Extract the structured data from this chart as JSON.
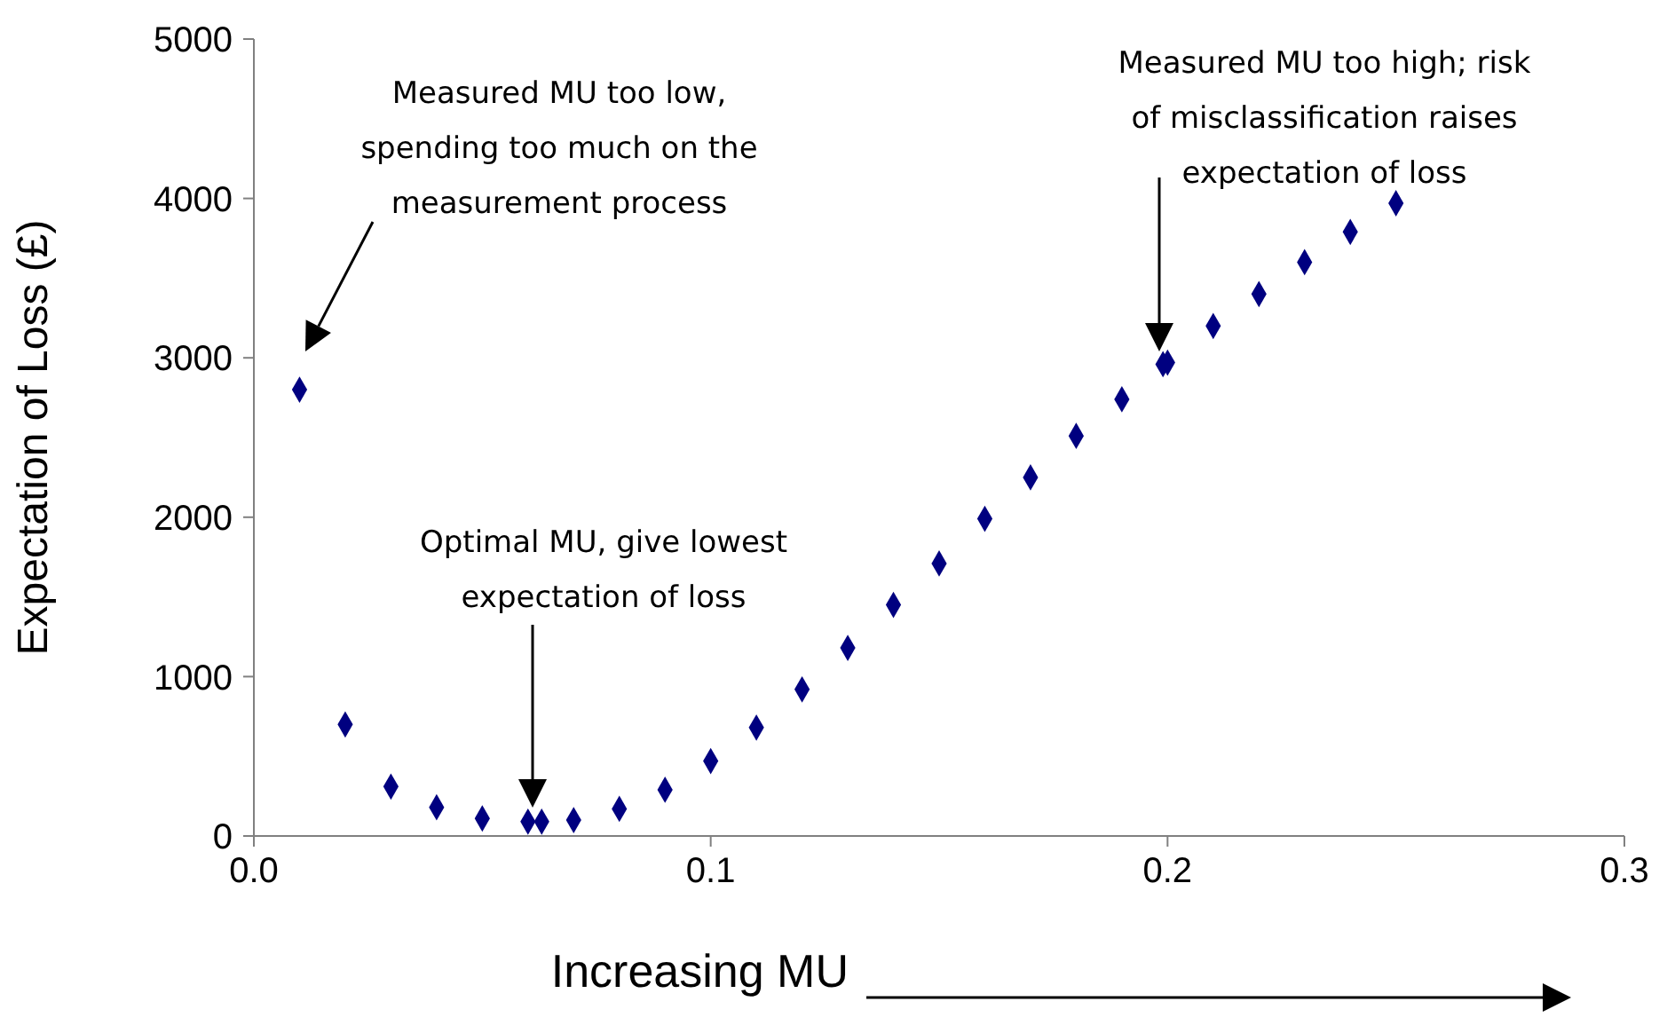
{
  "chart_data": {
    "type": "scatter",
    "xlabel": "Increasing MU",
    "ylabel": "Expectation of Loss (£)",
    "x": [
      0.01,
      0.02,
      0.03,
      0.04,
      0.05,
      0.06,
      0.063,
      0.07,
      0.08,
      0.09,
      0.1,
      0.11,
      0.12,
      0.13,
      0.14,
      0.15,
      0.16,
      0.17,
      0.18,
      0.19,
      0.199,
      0.2,
      0.21,
      0.22,
      0.23,
      0.24,
      0.25
    ],
    "series": [
      {
        "color": "#000080",
        "values": [
          2800,
          700,
          310,
          180,
          110,
          90,
          90,
          100,
          170,
          290,
          470,
          680,
          920,
          1180,
          1450,
          1710,
          1990,
          2250,
          2510,
          2740,
          2960,
          2970,
          3200,
          3400,
          3600,
          3790,
          3970
        ]
      }
    ],
    "xlim": [
      0,
      0.3
    ],
    "xticks": [
      {
        "value": 0,
        "label": "0.0"
      },
      0.1,
      0.2,
      0.3
    ],
    "ylim": [
      0,
      5000
    ],
    "yticks": [
      0,
      1000,
      2000,
      3000,
      4000,
      5000
    ],
    "marker": "diamond",
    "grid": false,
    "legend": false,
    "annotations": [
      "Measured MU too low,\nspending too much on the\nmeasurement process",
      "Optimal MU, give lowest\nexpectation of loss",
      "Measured MU too high; risk\nof misclassification raises\nexpectation of loss"
    ]
  }
}
